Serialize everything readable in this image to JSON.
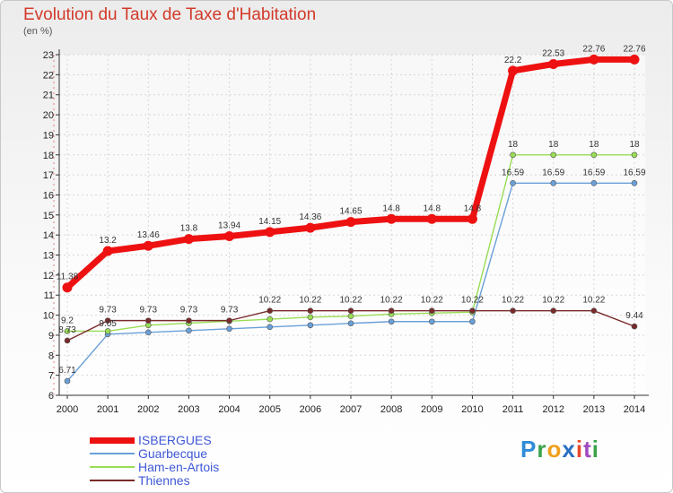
{
  "chart_data": {
    "type": "line",
    "title": "Evolution du Taux de Taxe d'Habitation",
    "unit_label": "(en %)",
    "x": [
      "2000",
      "2001",
      "2002",
      "2003",
      "2004",
      "2005",
      "2006",
      "2007",
      "2008",
      "2009",
      "2010",
      "2011",
      "2012",
      "2013",
      "2014"
    ],
    "ylim": [
      6,
      23
    ],
    "yticks": [
      6,
      7,
      8,
      9,
      10,
      11,
      12,
      13,
      14,
      15,
      16,
      17,
      18,
      19,
      20,
      21,
      22,
      23
    ],
    "grid": true,
    "legend_position": "bottom-left",
    "series": [
      {
        "name": "ISBERGUES",
        "color": "#ee1111",
        "values": [
          11.38,
          13.2,
          13.46,
          13.8,
          13.94,
          14.15,
          14.36,
          14.65,
          14.8,
          14.8,
          14.8,
          22.2,
          22.53,
          22.76,
          22.76
        ],
        "labels": [
          "11.38",
          "13.2",
          "13.46",
          "13.8",
          "13.94",
          "14.15",
          "14.36",
          "14.65",
          "14.8",
          "14.8",
          "14.8",
          "22.2",
          "22.53",
          "22.76",
          "22.76"
        ]
      },
      {
        "name": "Guarbecque",
        "color": "#6aa0d8",
        "values": [
          6.71,
          9.05,
          9.14,
          9.23,
          9.32,
          9.41,
          9.5,
          9.59,
          9.68,
          9.68,
          9.68,
          16.59,
          16.59,
          16.59,
          16.59
        ],
        "labels": [
          "6.71",
          "9.05",
          "",
          "",
          "",
          "",
          "",
          "",
          "",
          "",
          "",
          "16.59",
          "16.59",
          "16.59",
          "16.59"
        ]
      },
      {
        "name": "Ham-en-Artois",
        "color": "#99dd55",
        "values": [
          9.2,
          9.2,
          9.5,
          9.6,
          9.7,
          9.8,
          9.9,
          9.95,
          10.05,
          10.1,
          10.15,
          18,
          18,
          18,
          18
        ],
        "labels": [
          "9.2",
          "",
          "",
          "",
          "",
          "",
          "",
          "",
          "",
          "",
          "",
          "18",
          "18",
          "18",
          "18"
        ]
      },
      {
        "name": "Thiennes",
        "color": "#7a2a2a",
        "values": [
          8.73,
          9.73,
          9.73,
          9.73,
          9.73,
          10.22,
          10.22,
          10.22,
          10.22,
          10.22,
          10.22,
          10.22,
          10.22,
          10.22,
          9.44
        ],
        "labels": [
          "8.73",
          "9.73",
          "9.73",
          "9.73",
          "9.73",
          "10.22",
          "10.22",
          "10.22",
          "10.22",
          "10.22",
          "10.22",
          "10.22",
          "10.22",
          "10.22",
          "9.44"
        ]
      }
    ]
  },
  "legend": {
    "items": [
      {
        "name": "ISBERGUES",
        "color": "#ee1111"
      },
      {
        "name": "Guarbecque",
        "color": "#6aa0d8"
      },
      {
        "name": "Ham-en-Artois",
        "color": "#99dd55"
      },
      {
        "name": "Thiennes",
        "color": "#7a2a2a"
      }
    ]
  },
  "logo": {
    "letters": [
      "P",
      "r",
      "o",
      "x",
      "i",
      "t",
      "i"
    ],
    "colors": [
      "#2e8bd8",
      "#3aa34a",
      "#f0a020",
      "#2a6fc4",
      "#e84a2a",
      "#a04ac0",
      "#3aa34a"
    ]
  }
}
